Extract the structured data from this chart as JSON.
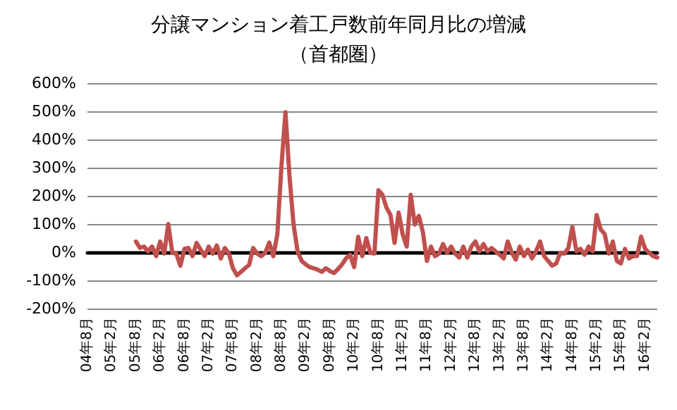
{
  "chart_data": {
    "type": "line",
    "title": "分譲マンション着工戸数前年同月比の増減",
    "subtitle": "（首都圏）",
    "categories": [
      "04年8月",
      null,
      null,
      null,
      null,
      null,
      "05年2月",
      null,
      null,
      null,
      null,
      null,
      "05年8月",
      null,
      null,
      null,
      null,
      null,
      "06年2月",
      null,
      null,
      null,
      null,
      null,
      "06年8月",
      null,
      null,
      null,
      null,
      null,
      "07年2月",
      null,
      null,
      null,
      null,
      null,
      "07年8月",
      null,
      null,
      null,
      null,
      null,
      "08年2月",
      null,
      null,
      null,
      null,
      null,
      "08年8月",
      null,
      null,
      null,
      null,
      null,
      "09年2月",
      null,
      null,
      null,
      null,
      null,
      "09年8月",
      null,
      null,
      null,
      null,
      null,
      "10年2月",
      null,
      null,
      null,
      null,
      null,
      "10年8月",
      null,
      null,
      null,
      null,
      null,
      "11年2月",
      null,
      null,
      null,
      null,
      null,
      "11年8月",
      null,
      null,
      null,
      null,
      null,
      "12年2月",
      null,
      null,
      null,
      null,
      null,
      "12年8月",
      null,
      null,
      null,
      null,
      null,
      "13年2月",
      null,
      null,
      null,
      null,
      null,
      "13年8月",
      null,
      null,
      null,
      null,
      null,
      "14年2月",
      null,
      null,
      null,
      null,
      null,
      "14年8月",
      null,
      null,
      null,
      null,
      null,
      "15年2月",
      null,
      null,
      null,
      null,
      null,
      "15年8月",
      null,
      null,
      null,
      null,
      null,
      "16年2月",
      null,
      null,
      null
    ],
    "series": [
      {
        "color": "#c0504d",
        "values": [
          null,
          null,
          null,
          null,
          null,
          null,
          null,
          null,
          null,
          null,
          null,
          null,
          38,
          15,
          20,
          3,
          20,
          -14,
          38,
          -5,
          100,
          -2,
          -5,
          -48,
          12,
          15,
          -14,
          33,
          9,
          -14,
          20,
          -5,
          24,
          -22,
          15,
          -5,
          -57,
          -82,
          -70,
          -57,
          -45,
          15,
          -5,
          -14,
          -2,
          34,
          -14,
          64,
          304,
          497,
          270,
          98,
          3,
          -31,
          -43,
          -53,
          -57,
          -62,
          -70,
          -57,
          -67,
          -74,
          -60,
          -43,
          -22,
          -9,
          -53,
          55,
          -14,
          50,
          -2,
          -5,
          220,
          204,
          158,
          132,
          33,
          141,
          64,
          20,
          204,
          98,
          129,
          72,
          -31,
          20,
          -14,
          -5,
          29,
          -2,
          20,
          -5,
          -19,
          20,
          -19,
          20,
          38,
          3,
          29,
          3,
          15,
          3,
          -9,
          -22,
          38,
          -2,
          -26,
          20,
          -14,
          9,
          -22,
          3,
          38,
          -14,
          -31,
          -48,
          -40,
          -2,
          -5,
          15,
          89,
          3,
          12,
          -9,
          20,
          3,
          132,
          81,
          64,
          -5,
          38,
          -31,
          -40,
          12,
          -22,
          -14,
          -14,
          55,
          12,
          -2,
          -14,
          -19
        ]
      }
    ],
    "ylim": [
      -200,
      600
    ],
    "yticks": [
      {
        "value": -200,
        "label": "-200%"
      },
      {
        "value": -100,
        "label": "-100%"
      },
      {
        "value": 0,
        "label": "0%"
      },
      {
        "value": 100,
        "label": "100%"
      },
      {
        "value": 200,
        "label": "200%"
      },
      {
        "value": 300,
        "label": "300%"
      },
      {
        "value": 400,
        "label": "400%"
      },
      {
        "value": 500,
        "label": "500%"
      },
      {
        "value": 600,
        "label": "600%"
      }
    ],
    "grid": "y",
    "line_style": "solid"
  }
}
